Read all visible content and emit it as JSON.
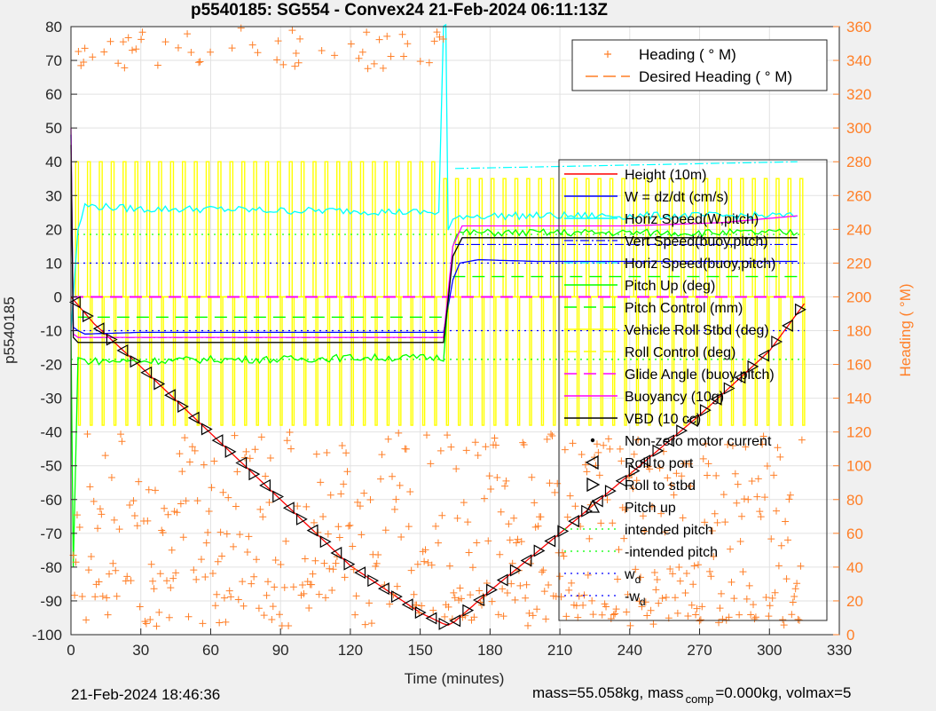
{
  "chart_data": {
    "type": "line",
    "title": "p5540185: SG554 - Convex24 21-Feb-2024 06:11:13Z",
    "xlabel": "Time (minutes)",
    "ylabel": "p5540185",
    "y2label": "Heading (  °M)",
    "xlim": [
      0,
      330
    ],
    "ylim": [
      -100,
      80
    ],
    "y2lim": [
      0,
      360
    ],
    "xticks": [
      "0",
      "30",
      "60",
      "90",
      "120",
      "150",
      "180",
      "210",
      "240",
      "270",
      "300",
      "330"
    ],
    "yticks": [
      "80",
      "70",
      "60",
      "50",
      "40",
      "30",
      "20",
      "10",
      "0",
      "-10",
      "-20",
      "-30",
      "-40",
      "-50",
      "-60",
      "-70",
      "-80",
      "-90",
      "-100"
    ],
    "y2ticks": [
      "360",
      "340",
      "320",
      "300",
      "280",
      "260",
      "240",
      "220",
      "200",
      "180",
      "160",
      "140",
      "120",
      "100",
      "80",
      "60",
      "40",
      "20",
      "0"
    ],
    "grid": true,
    "legend_heading": [
      {
        "label": "Heading (  ° M)",
        "color": "#ff7f27",
        "style": "plus"
      },
      {
        "label": "Desired Heading (    ° M)",
        "color": "#ff7f27",
        "style": "dash"
      }
    ],
    "legend_main": [
      {
        "label": "Height (10m)",
        "color": "#ff0000",
        "style": "line"
      },
      {
        "label": "W = dz/dt (cm/s)",
        "color": "#0000ff",
        "style": "line"
      },
      {
        "label": "Horiz Speed(W,pitch)",
        "color": "#00ffff",
        "style": "line"
      },
      {
        "label": "Vert Speed(buoy,pitch)",
        "color": "#0000ff",
        "style": "dashdot"
      },
      {
        "label": "Horiz Speed(buoy,pitch)",
        "color": "#00ffff",
        "style": "dashdot"
      },
      {
        "label": "Pitch Up (deg)",
        "color": "#00ff00",
        "style": "line"
      },
      {
        "label": "Pitch Control (mm)",
        "color": "#00ff00",
        "style": "dash"
      },
      {
        "label": "Vehicle Roll Stbd (deg)",
        "color": "#ffff00",
        "style": "line"
      },
      {
        "label": "Roll Control (deg)",
        "color": "#ffff00",
        "style": "dash"
      },
      {
        "label": "Glide Angle (buoy,pitch)",
        "color": "#ff00ff",
        "style": "dash"
      },
      {
        "label": "Buoyancy (10g)",
        "color": "#ff00ff",
        "style": "line"
      },
      {
        "label": "VBD (10 cc)",
        "color": "#000000",
        "style": "line"
      },
      {
        "label": "Non-zero motor current",
        "color": "#000000",
        "style": "dot"
      },
      {
        "label": "Roll to port",
        "color": "#000000",
        "style": "tri-left"
      },
      {
        "label": "Roll to stbd",
        "color": "#000000",
        "style": "tri-right"
      },
      {
        "label": "Pitch up",
        "color": "#000000",
        "style": "tri-up"
      },
      {
        "label": "intended pitch",
        "color": "#00ff00",
        "style": "dot-line"
      },
      {
        "label": "-intended pitch",
        "color": "#00ff00",
        "style": "dot-line"
      },
      {
        "label": "w",
        "sub": "d",
        "color": "#0000ff",
        "style": "dot-line"
      },
      {
        "label": "-w",
        "sub": "d",
        "color": "#0000ff",
        "style": "dot-line"
      }
    ],
    "series": [
      {
        "name": "Height (10m)",
        "color": "#ff0000",
        "x": [
          0,
          10,
          30,
          60,
          90,
          120,
          150,
          160,
          162,
          165,
          180,
          210,
          240,
          270,
          300,
          315
        ],
        "y": [
          0,
          -8,
          -20.7,
          -40.4,
          -60,
          -79.6,
          -93.5,
          -96.8,
          -97.2,
          -96,
          -87,
          -70,
          -52.5,
          -35,
          -16,
          -2
        ]
      },
      {
        "name": "W = dz/dt (cm/s)",
        "color": "#0000ff",
        "x": [
          0,
          1,
          3,
          6,
          30,
          60,
          90,
          120,
          150,
          160,
          164,
          167,
          175,
          200,
          240,
          280,
          312
        ],
        "y": [
          48,
          -9,
          -10,
          -11,
          -10.5,
          -10.5,
          -10.5,
          -10.5,
          -10.5,
          -10.5,
          5,
          10,
          11,
          10.5,
          10.5,
          10.5,
          10.5
        ]
      },
      {
        "name": "Horiz Speed(W,pitch)",
        "color": "#00ffff",
        "x": [
          0,
          3,
          6,
          30,
          60,
          90,
          120,
          150,
          158,
          160,
          161,
          162,
          164,
          167,
          200,
          240,
          280,
          312
        ],
        "y": [
          -10,
          20,
          27,
          26,
          26,
          25.5,
          25.5,
          25,
          25,
          80,
          80,
          20,
          22,
          24,
          24,
          24,
          24,
          24
        ]
      },
      {
        "name": "Pitch Up (deg)",
        "color": "#00ff00",
        "x": [
          0,
          1,
          3,
          6,
          30,
          60,
          90,
          120,
          150,
          160,
          164,
          167,
          200,
          240,
          280,
          312
        ],
        "y": [
          -10,
          -80,
          -18,
          -19,
          -19,
          -18.5,
          -18.5,
          -18,
          -18,
          -18,
          16,
          19,
          19,
          19,
          19,
          19
        ]
      },
      {
        "name": "Buoyancy (10g)",
        "color": "#ff00ff",
        "x": [
          0,
          1,
          3,
          6,
          160,
          164,
          168,
          200,
          240,
          280,
          312
        ],
        "y": [
          50,
          -11,
          -12,
          -12,
          -12,
          15,
          21,
          21,
          21,
          22,
          24
        ]
      },
      {
        "name": "VBD (10 cc)",
        "color": "#000000",
        "x": [
          0,
          1,
          3,
          6,
          160,
          164,
          168,
          200,
          240,
          280,
          312
        ],
        "y": [
          45,
          -12,
          -13.5,
          -13.5,
          -13.5,
          12,
          17.5,
          17.5,
          17.5,
          17.5,
          17.5
        ]
      }
    ],
    "reference_lines": [
      {
        "name": "intended pitch",
        "y": 18.5,
        "color": "#00ff00"
      },
      {
        "name": "-intended pitch",
        "y": -18.5,
        "color": "#00ff00"
      },
      {
        "name": "w_d",
        "y": 10,
        "color": "#0000ff"
      },
      {
        "name": "-w_d",
        "y": -10,
        "color": "#0000ff"
      },
      {
        "name": "Glide Angle (buoy,pitch)",
        "y": 0,
        "color": "#ff00ff"
      }
    ],
    "heading_samples_deg": {
      "dive_segment": [
        10,
        55,
        340,
        350,
        355,
        70,
        40,
        20
      ],
      "climb_segment": [
        20,
        60,
        100,
        40,
        10
      ]
    }
  },
  "footer": {
    "timestamp": "21-Feb-2024 18:46:36",
    "mass_text": "mass=55.058kg, mass",
    "comp_sub": "comp",
    "volmax_text": "=0.000kg, volmax=5"
  }
}
